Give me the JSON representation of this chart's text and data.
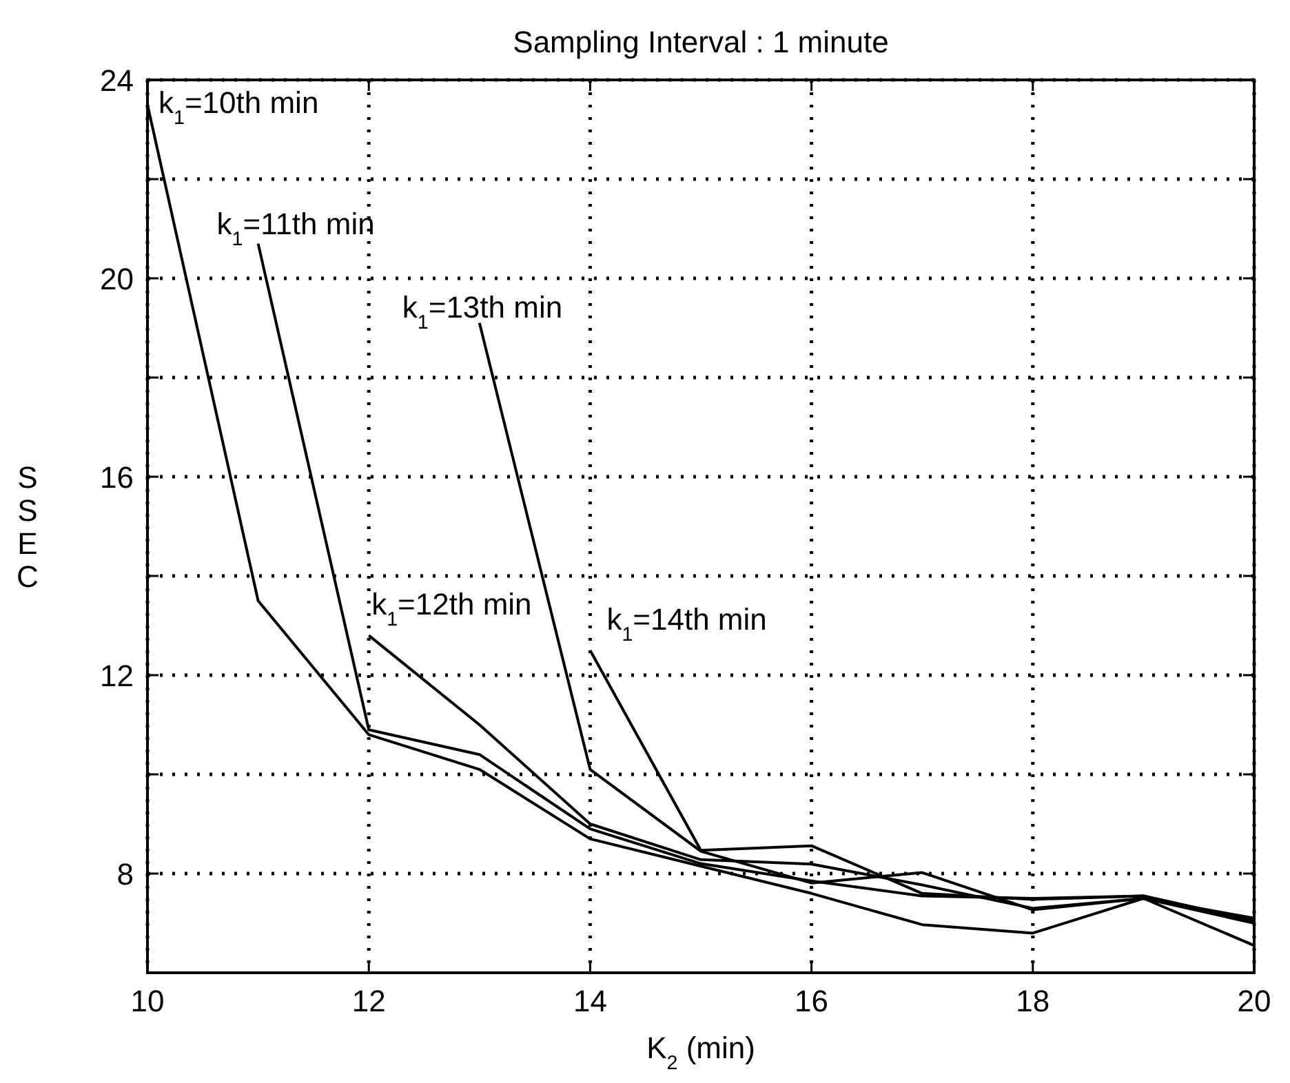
{
  "chart_data": {
    "type": "line",
    "title": "Sampling Interval : 1 minute",
    "xlabel": "K$_{2}$ (min)",
    "ylabel": "SSEC",
    "xlim": [
      10,
      20
    ],
    "ylim": [
      6,
      24
    ],
    "xticks": [
      10,
      12,
      14,
      16,
      18,
      20
    ],
    "yticks": [
      8,
      {
        "value": 10,
        "label": null
      },
      12,
      {
        "value": 14,
        "label": null
      },
      16,
      {
        "value": 18,
        "label": null
      },
      20,
      {
        "value": 22,
        "label": null
      },
      24
    ],
    "grid": true,
    "line_style": "solid",
    "marker": "none",
    "series": [
      {
        "name": "k$_{1}$=10th min",
        "color": "#000000",
        "x": [
          10,
          11,
          12,
          13,
          14,
          15,
          16,
          17,
          18,
          19,
          20
        ],
        "values": [
          23.5,
          13.5,
          10.8,
          10.1,
          8.7,
          8.15,
          7.6,
          6.97,
          6.8,
          7.5,
          6.55
        ]
      },
      {
        "name": "k$_{1}$=11th min",
        "color": "#000000",
        "x": [
          11,
          12,
          13,
          14,
          15,
          16,
          17,
          18,
          19,
          20
        ],
        "values": [
          20.7,
          10.9,
          10.4,
          8.9,
          8.2,
          7.85,
          7.55,
          7.5,
          7.55,
          7.05
        ]
      },
      {
        "name": "k$_{1}$=12th min",
        "color": "#000000",
        "x": [
          12,
          13,
          14,
          15,
          16,
          17,
          18,
          19,
          20
        ],
        "values": [
          12.8,
          11.0,
          9.0,
          8.28,
          8.19,
          7.77,
          7.3,
          7.5,
          7.0
        ]
      },
      {
        "name": "k$_{1}$=13th min",
        "color": "#000000",
        "x": [
          13,
          14,
          15,
          16,
          17,
          18,
          19,
          20
        ],
        "values": [
          19.1,
          10.1,
          8.45,
          7.81,
          8.02,
          7.27,
          7.5,
          7.1
        ]
      },
      {
        "name": "k$_{1}$=14th min",
        "color": "#000000",
        "x": [
          14,
          15,
          16,
          17,
          18,
          19,
          20
        ],
        "values": [
          12.5,
          8.47,
          8.56,
          7.6,
          7.48,
          7.55,
          7.05
        ]
      }
    ]
  }
}
